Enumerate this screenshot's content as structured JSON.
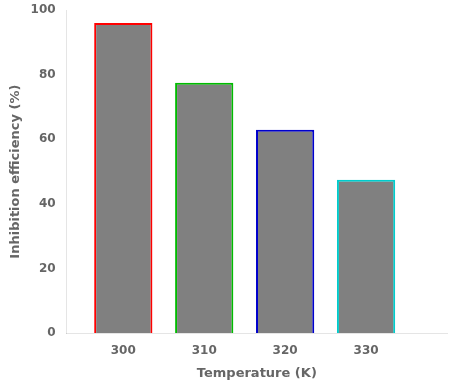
{
  "chart_data": {
    "type": "bar",
    "x": [
      300,
      310,
      320,
      330
    ],
    "values": [
      96.0,
      77.5,
      63.0,
      47.5
    ],
    "color": "#808080",
    "colors": [
      "#ff0000",
      "#00bb00",
      "#0000cc",
      "#00cccc"
    ],
    "xlabel": "Temperature (K)",
    "ylabel": "Inhibition efficiency (%)",
    "xlim": [
      293,
      340
    ],
    "xticks": [
      300,
      310,
      320,
      330
    ],
    "ylim": [
      0,
      100
    ],
    "yticks": [
      0,
      20,
      40,
      60,
      80,
      100
    ],
    "grid": false
  }
}
